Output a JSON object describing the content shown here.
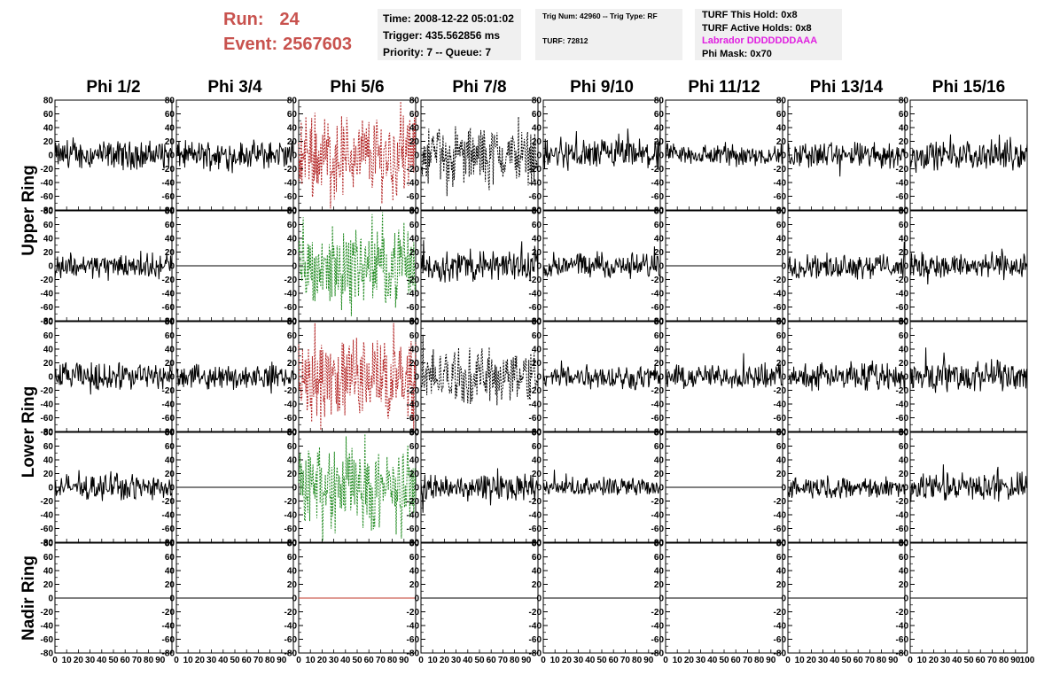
{
  "header": {
    "run_label": "Run:",
    "run_value": "24",
    "event_label": "Event:",
    "event_value": "2567603"
  },
  "time_box": {
    "time": "Time: 2008-12-22 05:01:02",
    "trigger": "Trigger: 435.562856 ms",
    "priority": "Priority: 7 -- Queue: 7"
  },
  "trig_box": {
    "trig": "Trig Num: 42960 -- Trig Type: RF",
    "turf": "TURF: 72812"
  },
  "turf_box": {
    "this_hold": "TURF This Hold: 0x8",
    "active_holds": "TURF Active Holds: 0x8",
    "labrador": "Labrador DDDDDDDAAA",
    "phi_mask": "Phi Mask: 0x70",
    "labrador_color": "#e020e0"
  },
  "chart_data": {
    "type": "line",
    "columns": [
      "Phi 1/2",
      "Phi 3/4",
      "Phi 5/6",
      "Phi 7/8",
      "Phi 9/10",
      "Phi 11/12",
      "Phi 13/14",
      "Phi 15/16"
    ],
    "rings": [
      "Upper Ring",
      "Lower Ring",
      "Nadir Ring"
    ],
    "rows_per_ring": [
      2,
      2,
      1
    ],
    "xlim": [
      0,
      100
    ],
    "ylim": [
      -80,
      80
    ],
    "x_ticks": [
      "0",
      "10",
      "20",
      "30",
      "40",
      "50",
      "60",
      "70",
      "80",
      "90",
      "100"
    ],
    "y_ticks": [
      "80",
      "60",
      "40",
      "20",
      "0",
      "-20",
      "-40",
      "-60",
      "-80"
    ],
    "colors": {
      "normal": "#000000",
      "triggered_red": "#b22222",
      "triggered_green": "#228b22",
      "nadir_flat": "#c0392b"
    },
    "panels": [
      [
        {
          "style": "solid",
          "color": "normal",
          "amp": 15
        },
        {
          "style": "solid",
          "color": "normal",
          "amp": 15
        },
        {
          "style": "dashed",
          "color": "triggered_red",
          "amp": 45
        },
        {
          "style": "dashed",
          "color": "normal",
          "amp": 30
        },
        {
          "style": "solid",
          "color": "normal",
          "amp": 17
        },
        {
          "style": "solid",
          "color": "normal",
          "amp": 12
        },
        {
          "style": "solid",
          "color": "normal",
          "amp": 14
        },
        {
          "style": "solid",
          "color": "normal",
          "amp": 15
        }
      ],
      [
        {
          "style": "solid",
          "color": "normal",
          "amp": 13
        },
        {
          "style": "flat",
          "color": "normal",
          "amp": 0
        },
        {
          "style": "dashed",
          "color": "triggered_green",
          "amp": 40
        },
        {
          "style": "solid",
          "color": "normal",
          "amp": 17
        },
        {
          "style": "solid",
          "color": "normal",
          "amp": 14
        },
        {
          "style": "flat",
          "color": "normal",
          "amp": 0
        },
        {
          "style": "solid",
          "color": "normal",
          "amp": 13
        },
        {
          "style": "solid",
          "color": "normal",
          "amp": 14
        }
      ],
      [
        {
          "style": "solid",
          "color": "normal",
          "amp": 15
        },
        {
          "style": "solid",
          "color": "normal",
          "amp": 12
        },
        {
          "style": "dashed",
          "color": "triggered_red",
          "amp": 45
        },
        {
          "style": "dashed",
          "color": "normal",
          "amp": 30
        },
        {
          "style": "solid",
          "color": "normal",
          "amp": 13
        },
        {
          "style": "solid",
          "color": "normal",
          "amp": 13
        },
        {
          "style": "solid",
          "color": "normal",
          "amp": 14
        },
        {
          "style": "solid",
          "color": "normal",
          "amp": 17
        }
      ],
      [
        {
          "style": "solid",
          "color": "normal",
          "amp": 13
        },
        {
          "style": "flat",
          "color": "normal",
          "amp": 0
        },
        {
          "style": "dashed",
          "color": "triggered_green",
          "amp": 45
        },
        {
          "style": "solid",
          "color": "normal",
          "amp": 14
        },
        {
          "style": "solid",
          "color": "normal",
          "amp": 10
        },
        {
          "style": "flat",
          "color": "normal",
          "amp": 0
        },
        {
          "style": "solid",
          "color": "normal",
          "amp": 11
        },
        {
          "style": "solid",
          "color": "normal",
          "amp": 15
        }
      ],
      [
        {
          "style": "flat",
          "color": "normal",
          "amp": 0
        },
        {
          "style": "flat",
          "color": "normal",
          "amp": 0
        },
        {
          "style": "flat",
          "color": "nadir_flat",
          "amp": 0
        },
        {
          "style": "flat",
          "color": "normal",
          "amp": 0
        },
        {
          "style": "flat",
          "color": "normal",
          "amp": 0
        },
        {
          "style": "flat",
          "color": "normal",
          "amp": 0
        },
        {
          "style": "flat",
          "color": "normal",
          "amp": 0
        },
        {
          "style": "flat",
          "color": "normal",
          "amp": 0
        }
      ]
    ]
  }
}
